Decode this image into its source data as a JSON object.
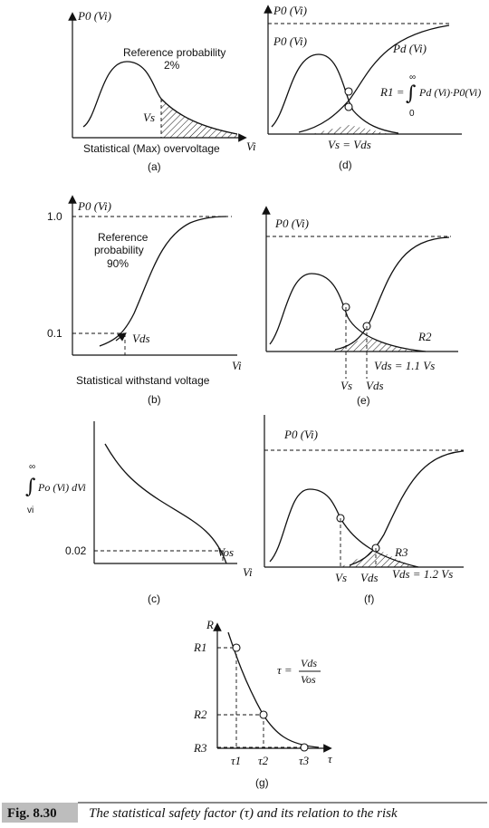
{
  "panels": {
    "a": {
      "ylabel": "P0 (Vi)",
      "ref_line1": "Reference probability",
      "ref_line2": "2%",
      "vs": "Vs",
      "xlabel": "Statistical (Max) overvoltage",
      "xvar": "Vi",
      "tag": "(a)"
    },
    "b": {
      "ylabel": "P0 (Vi)",
      "y_top": "1.0",
      "y_low": "0.1",
      "ref_line1": "Reference",
      "ref_line2": "probability",
      "ref_line3": "90%",
      "vds": "Vds",
      "xlabel": "Statistical withstand voltage",
      "xvar": "Vi",
      "tag": "(b)"
    },
    "c": {
      "integral_top": "∞",
      "integral_expr": "Po (Vi) dVi",
      "integral_bottom": "vi",
      "y_val": "0.02",
      "vos": "Vos",
      "xvar": "Vi",
      "tag": "(c)"
    },
    "d": {
      "ylabel": "P0 (Vi)",
      "curve_label": "P0 (Vi)",
      "pd_label": "Pd (Vi)",
      "r1_lhs": "R1 =",
      "r1_top": "∞",
      "r1_bottom": "0",
      "r1_expr": "Pd (Vi)·P0(Vi)",
      "eq": "Vs = Vds",
      "tag": "(d)"
    },
    "e": {
      "ylabel": "P0 (Vi)",
      "r": "R2",
      "vds_eq": "Vds = 1.1 Vs",
      "vs": "Vs",
      "vds": "Vds",
      "tag": "(e)"
    },
    "f": {
      "ylabel": "P0 (Vi)",
      "r": "R3",
      "vs": "Vs",
      "vds": "Vds",
      "vds_eq": "Vds = 1.2 Vs",
      "tag": "(f)"
    },
    "g": {
      "ylabel": "R",
      "r1": "R1",
      "r2": "R2",
      "r3": "R3",
      "tau_eq_lhs": "τ =",
      "tau_num": "Vds",
      "tau_den": "Vos",
      "t1": "τ1",
      "t2": "τ2",
      "t3": "τ3",
      "xvar": "τ",
      "tag": "(g)"
    }
  },
  "caption": {
    "number": "Fig. 8.30",
    "text": "The statistical safety factor (τ) and its relation to the risk"
  }
}
